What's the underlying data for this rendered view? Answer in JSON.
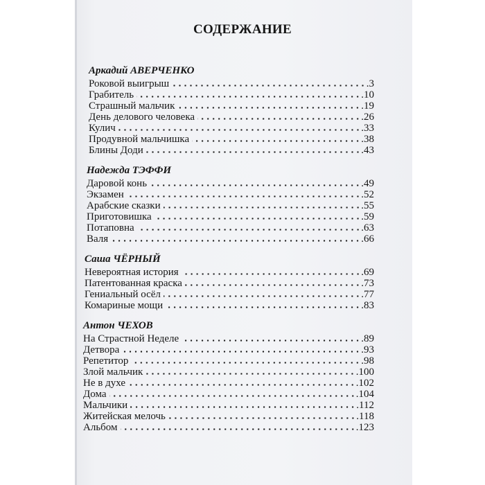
{
  "title": "СОДЕРЖАНИЕ",
  "sections": [
    {
      "author": "Аркадий АВЕРЧЕНКО",
      "entries": [
        {
          "title": "Роковой выигрыш",
          "page": ".3"
        },
        {
          "title": "Грабитель",
          "page": ".10"
        },
        {
          "title": "Страшный мальчик",
          "page": ".19"
        },
        {
          "title": "День делового человека",
          "page": ".26"
        },
        {
          "title": "Кулич",
          "page": ".33"
        },
        {
          "title": "Продувной мальчишка",
          "page": ".38"
        },
        {
          "title": "Блины Доди",
          "page": ".43"
        }
      ]
    },
    {
      "author": "Надежда ТЭФФИ",
      "entries": [
        {
          "title": "Даровой конь",
          "page": ".49"
        },
        {
          "title": "Экзамен",
          "page": ".52"
        },
        {
          "title": "Арабские сказки",
          "page": ".55"
        },
        {
          "title": "Приготовишка",
          "page": ".59"
        },
        {
          "title": "Потаповна",
          "page": ".63"
        },
        {
          "title": "Валя",
          "page": ".66"
        }
      ]
    },
    {
      "author": "Саша ЧЁРНЫЙ",
      "entries": [
        {
          "title": "Невероятная история",
          "page": ".69"
        },
        {
          "title": "Патентованная краска",
          "page": ".73"
        },
        {
          "title": "Гениальный осёл",
          "page": ".77"
        },
        {
          "title": "Комариные мощи",
          "page": ".83"
        }
      ]
    },
    {
      "author": "Антон ЧЕХОВ",
      "entries": [
        {
          "title": "На Страстной Неделе",
          "page": ".89"
        },
        {
          "title": "Детвора",
          "page": ".93"
        },
        {
          "title": "Репетитор",
          "page": ".98"
        },
        {
          "title": "Злой мальчик",
          "page": ".100"
        },
        {
          "title": "Не в духе",
          "page": ".102"
        },
        {
          "title": "Дома",
          "page": ".104"
        },
        {
          "title": "Мальчики",
          "page": ".112"
        },
        {
          "title": "Житейская мелочь",
          "page": ".118"
        },
        {
          "title": "Альбом",
          "page": ".123"
        }
      ]
    }
  ]
}
